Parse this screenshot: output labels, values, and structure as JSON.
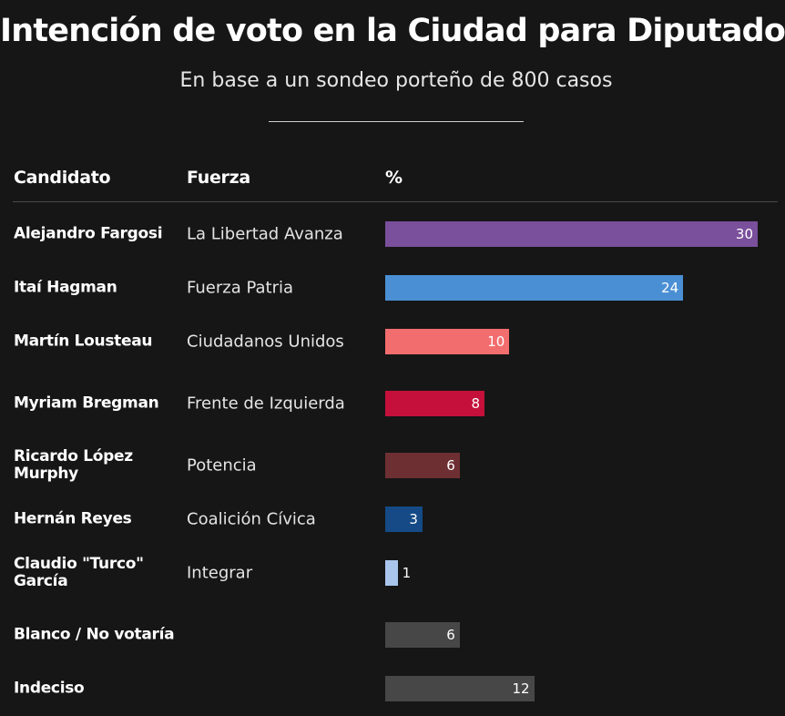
{
  "header": {
    "title": "Intención de voto en la Ciudad para Diputados",
    "subtitle": "En base a un sondeo porteño de 800 casos"
  },
  "columns": {
    "candidato": "Candidato",
    "fuerza": "Fuerza",
    "percent": "%"
  },
  "chart_data": {
    "type": "bar",
    "orientation": "horizontal",
    "title": "Intención de voto en la Ciudad para Diputados",
    "subtitle": "En base a un sondeo porteño de 800 casos",
    "xlim": [
      0,
      30
    ],
    "grid": false,
    "rows": [
      {
        "candidato": "Alejandro Fargosi",
        "fuerza": "La Libertad Avanza",
        "value": 30,
        "color": "#7a4f9b"
      },
      {
        "candidato": "Itaí Hagman",
        "fuerza": "Fuerza Patria",
        "value": 24,
        "color": "#4a8fd4"
      },
      {
        "candidato": "Martín Lousteau",
        "fuerza": "Ciudadanos Unidos",
        "value": 10,
        "color": "#f26d6d"
      },
      {
        "candidato": "Myriam Bregman",
        "fuerza": "Frente de Izquierda",
        "value": 8,
        "color": "#c4103a"
      },
      {
        "candidato": "Ricardo López Murphy",
        "fuerza": "Potencia",
        "value": 6,
        "color": "#6e2f33"
      },
      {
        "candidato": "Hernán Reyes",
        "fuerza": "Coalición Cívica",
        "value": 3,
        "color": "#154a86"
      },
      {
        "candidato": "Claudio \"Turco\" García",
        "fuerza": "Integrar",
        "value": 1,
        "color": "#a9c5ec"
      },
      {
        "candidato": "Blanco / No votaría",
        "fuerza": "",
        "value": 6,
        "color": "#474747"
      },
      {
        "candidato": "Indeciso",
        "fuerza": "",
        "value": 12,
        "color": "#474747"
      }
    ]
  }
}
